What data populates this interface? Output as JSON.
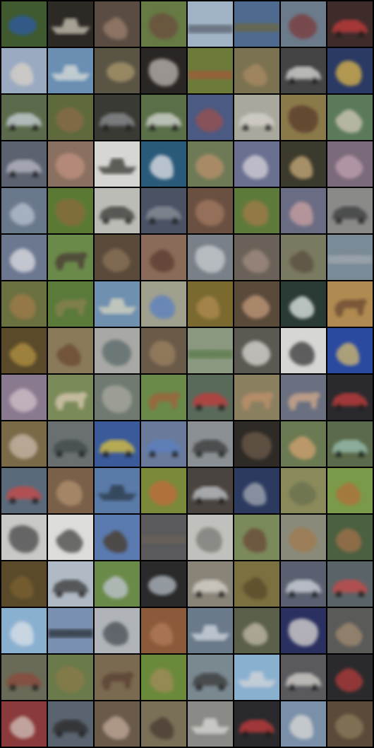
{
  "grid": {
    "rows": 16,
    "cols": 8,
    "tiles": [
      {
        "bg": "#3e5a2e",
        "fg": "#2f5aa0",
        "shape": "ellipse"
      },
      {
        "bg": "#2d2a26",
        "fg": "#c9c3b3",
        "shape": "boat"
      },
      {
        "bg": "#5a4c42",
        "fg": "#9a7e6c",
        "shape": "blob"
      },
      {
        "bg": "#667a44",
        "fg": "#6b4d3c",
        "shape": "blob"
      },
      {
        "bg": "#9fb3c5",
        "fg": "#5c6470",
        "shape": "band"
      },
      {
        "bg": "#4e6a8e",
        "fg": "#6b6640",
        "shape": "band"
      },
      {
        "bg": "#6c7b8b",
        "fg": "#7a3a3a",
        "shape": "blob"
      },
      {
        "bg": "#3d2c2a",
        "fg": "#c23a3a",
        "shape": "car"
      },
      {
        "bg": "#9aaac0",
        "fg": "#d8d0c8",
        "shape": "blob"
      },
      {
        "bg": "#6a8fb2",
        "fg": "#d8dcd8",
        "shape": "boat"
      },
      {
        "bg": "#5a5444",
        "fg": "#a8966a",
        "shape": "ellipse"
      },
      {
        "bg": "#2a2624",
        "fg": "#b9b4ae",
        "shape": "blob"
      },
      {
        "bg": "#6c7a3a",
        "fg": "#a05a3a",
        "shape": "band"
      },
      {
        "bg": "#7a7250",
        "fg": "#a88a62",
        "shape": "blob"
      },
      {
        "bg": "#444444",
        "fg": "#d8d8d6",
        "shape": "car"
      },
      {
        "bg": "#2a3a64",
        "fg": "#d8b24c",
        "shape": "blob"
      },
      {
        "bg": "#5a6a4a",
        "fg": "#c8d0d8",
        "shape": "car"
      },
      {
        "bg": "#5e6a3c",
        "fg": "#8a6a4a",
        "shape": "blob"
      },
      {
        "bg": "#3a3a34",
        "fg": "#8a8e90",
        "shape": "car"
      },
      {
        "bg": "#5a6e48",
        "fg": "#d4d6d2",
        "shape": "car"
      },
      {
        "bg": "#4a5a82",
        "fg": "#9a5050",
        "shape": "blob"
      },
      {
        "bg": "#a8a89c",
        "fg": "#d6d2cc",
        "shape": "car"
      },
      {
        "bg": "#8a7a4a",
        "fg": "#5a3a2a",
        "shape": "blob"
      },
      {
        "bg": "#5a7a5a",
        "fg": "#cfc6b8",
        "shape": "blob"
      },
      {
        "bg": "#5c6270",
        "fg": "#b8b8c4",
        "shape": "car"
      },
      {
        "bg": "#8a7060",
        "fg": "#c09080",
        "shape": "blob"
      },
      {
        "bg": "#d6d6d4",
        "fg": "#3a3a36",
        "shape": "boat"
      },
      {
        "bg": "#2a5a7a",
        "fg": "#e0e0e6",
        "shape": "blob"
      },
      {
        "bg": "#6e7a56",
        "fg": "#b8906a",
        "shape": "blob"
      },
      {
        "bg": "#6a7090",
        "fg": "#d4d0d8",
        "shape": "blob"
      },
      {
        "bg": "#3c3a2c",
        "fg": "#c4a878",
        "shape": "blob"
      },
      {
        "bg": "#7a6a7a",
        "fg": "#c0a0b0",
        "shape": "blob"
      },
      {
        "bg": "#6a788c",
        "fg": "#b6c0ce",
        "shape": "blob"
      },
      {
        "bg": "#5a7a34",
        "fg": "#8a6a3a",
        "shape": "blob"
      },
      {
        "bg": "#bcbcb6",
        "fg": "#3a3a38",
        "shape": "car"
      },
      {
        "bg": "#4a5264",
        "fg": "#8a9098",
        "shape": "car"
      },
      {
        "bg": "#6a5040",
        "fg": "#a07860",
        "shape": "blob"
      },
      {
        "bg": "#5e7a3a",
        "fg": "#a07a4a",
        "shape": "blob"
      },
      {
        "bg": "#6a6c84",
        "fg": "#c8a0a0",
        "shape": "blob"
      },
      {
        "bg": "#8a8a88",
        "fg": "#3a3c3c",
        "shape": "car"
      },
      {
        "bg": "#6c7890",
        "fg": "#dcdce2",
        "shape": "blob"
      },
      {
        "bg": "#6a8a4a",
        "fg": "#4a3a34",
        "shape": "animal"
      },
      {
        "bg": "#5a4a3a",
        "fg": "#8a7258",
        "shape": "blob"
      },
      {
        "bg": "#8a6a58",
        "fg": "#5a3c30",
        "shape": "blob"
      },
      {
        "bg": "#7a8088",
        "fg": "#c8ccd0",
        "shape": "blob"
      },
      {
        "bg": "#6a6258",
        "fg": "#a08a80",
        "shape": "blob"
      },
      {
        "bg": "#7a7a60",
        "fg": "#5a5040",
        "shape": "blob"
      },
      {
        "bg": "#7a8a96",
        "fg": "#a0a8b0",
        "shape": "band"
      },
      {
        "bg": "#6a7040",
        "fg": "#a07a4a",
        "shape": "blob"
      },
      {
        "bg": "#5a7a3a",
        "fg": "#8a8050",
        "shape": "animal"
      },
      {
        "bg": "#7090b0",
        "fg": "#d6d4c0",
        "shape": "boat"
      },
      {
        "bg": "#a0a08e",
        "fg": "#5a80c0",
        "shape": "blob"
      },
      {
        "bg": "#7a6a30",
        "fg": "#b08a50",
        "shape": "blob"
      },
      {
        "bg": "#5a4a3a",
        "fg": "#c09878",
        "shape": "blob"
      },
      {
        "bg": "#2a3a34",
        "fg": "#e0e8e4",
        "shape": "blob"
      },
      {
        "bg": "#b08a50",
        "fg": "#6a4a30",
        "shape": "animal"
      },
      {
        "bg": "#5a4a2a",
        "fg": "#b09040",
        "shape": "blob"
      },
      {
        "bg": "#8a7a5a",
        "fg": "#6a4a30",
        "shape": "blob"
      },
      {
        "bg": "#a8a8a4",
        "fg": "#5a6a6a",
        "shape": "blob"
      },
      {
        "bg": "#6a5a48",
        "fg": "#9a8060",
        "shape": "blob"
      },
      {
        "bg": "#8a9880",
        "fg": "#5a7a4a",
        "shape": "band"
      },
      {
        "bg": "#5a5a52",
        "fg": "#d8d6d2",
        "shape": "blob"
      },
      {
        "bg": "#d6d6d4",
        "fg": "#3a3a3a",
        "shape": "blob"
      },
      {
        "bg": "#2a4aa0",
        "fg": "#d0b870",
        "shape": "blob"
      },
      {
        "bg": "#8a7a90",
        "fg": "#d0c0c8",
        "shape": "blob"
      },
      {
        "bg": "#7a8a58",
        "fg": "#d8c8b0",
        "shape": "animal"
      },
      {
        "bg": "#707a70",
        "fg": "#a8a8a0",
        "shape": "blob"
      },
      {
        "bg": "#6a8a4a",
        "fg": "#a0603a",
        "shape": "animal"
      },
      {
        "bg": "#5a6a5a",
        "fg": "#c23a3a",
        "shape": "car"
      },
      {
        "bg": "#8a8060",
        "fg": "#c0906a",
        "shape": "animal"
      },
      {
        "bg": "#6a7080",
        "fg": "#d0a88a",
        "shape": "animal"
      },
      {
        "bg": "#2a2a2e",
        "fg": "#c23a3a",
        "shape": "car"
      },
      {
        "bg": "#7a6a48",
        "fg": "#c8b8a8",
        "shape": "blob"
      },
      {
        "bg": "#6a7070",
        "fg": "#404a4a",
        "shape": "car"
      },
      {
        "bg": "#3a5a9a",
        "fg": "#d8c040",
        "shape": "car"
      },
      {
        "bg": "#6a7a9a",
        "fg": "#5a80c0",
        "shape": "car"
      },
      {
        "bg": "#8a9094",
        "fg": "#3a3a3a",
        "shape": "car"
      },
      {
        "bg": "#2e2a26",
        "fg": "#6a5a4a",
        "shape": "blob"
      },
      {
        "bg": "#6a7a52",
        "fg": "#d0a070",
        "shape": "blob"
      },
      {
        "bg": "#5a6a4a",
        "fg": "#9ac0b0",
        "shape": "car"
      },
      {
        "bg": "#5a6a7a",
        "fg": "#c84a4a",
        "shape": "car"
      },
      {
        "bg": "#7a6048",
        "fg": "#b09070",
        "shape": "blob"
      },
      {
        "bg": "#5a7aa8",
        "fg": "#2a3a4a",
        "shape": "boat"
      },
      {
        "bg": "#7a8a3a",
        "fg": "#c06a3a",
        "shape": "blob"
      },
      {
        "bg": "#4a4440",
        "fg": "#c0c4c8",
        "shape": "car"
      },
      {
        "bg": "#2c3a60",
        "fg": "#a0a8b0",
        "shape": "blob"
      },
      {
        "bg": "#8a8a5a",
        "fg": "#6a7050",
        "shape": "blob"
      },
      {
        "bg": "#7a9a4a",
        "fg": "#b0703a",
        "shape": "blob"
      },
      {
        "bg": "#c8c8c6",
        "fg": "#4a4a48",
        "shape": "blob"
      },
      {
        "bg": "#dcdcda",
        "fg": "#4a4a46",
        "shape": "blob"
      },
      {
        "bg": "#5a7ab0",
        "fg": "#4a3a2a",
        "shape": "blob"
      },
      {
        "bg": "#5a5a5c",
        "fg": "#6a6058",
        "shape": "band"
      },
      {
        "bg": "#c0c0bc",
        "fg": "#7a7a76",
        "shape": "blob"
      },
      {
        "bg": "#7a8a5a",
        "fg": "#6a4a38",
        "shape": "blob"
      },
      {
        "bg": "#8a8a7a",
        "fg": "#a07a50",
        "shape": "blob"
      },
      {
        "bg": "#4a6040",
        "fg": "#a0704a",
        "shape": "blob"
      },
      {
        "bg": "#5a4a2a",
        "fg": "#7a6030",
        "shape": "blob"
      },
      {
        "bg": "#b0bac4",
        "fg": "#3a3a3a",
        "shape": "car"
      },
      {
        "bg": "#6a8a4a",
        "fg": "#c0c4d0",
        "shape": "blob"
      },
      {
        "bg": "#2a2a2a",
        "fg": "#b0b8c0",
        "shape": "ellipse"
      },
      {
        "bg": "#8a8478",
        "fg": "#d8d4cc",
        "shape": "car"
      },
      {
        "bg": "#7a7040",
        "fg": "#5a4a2a",
        "shape": "blob"
      },
      {
        "bg": "#5a6070",
        "fg": "#d0d4dc",
        "shape": "car"
      },
      {
        "bg": "#5a6468",
        "fg": "#c84a4a",
        "shape": "car"
      },
      {
        "bg": "#8ab0d0",
        "fg": "#d8e0e6",
        "shape": "blob"
      },
      {
        "bg": "#7a90b0",
        "fg": "#2a3038",
        "shape": "band"
      },
      {
        "bg": "#b0b4b8",
        "fg": "#4a5054",
        "shape": "blob"
      },
      {
        "bg": "#8a5a3a",
        "fg": "#b07a5a",
        "shape": "blob"
      },
      {
        "bg": "#6a7a8a",
        "fg": "#d0d8e0",
        "shape": "boat"
      },
      {
        "bg": "#5a604a",
        "fg": "#c0b8a8",
        "shape": "blob"
      },
      {
        "bg": "#2a3060",
        "fg": "#d8d4d0",
        "shape": "blob"
      },
      {
        "bg": "#5a5a58",
        "fg": "#a08a70",
        "shape": "blob"
      },
      {
        "bg": "#6a6a58",
        "fg": "#8a4a3a",
        "shape": "car"
      },
      {
        "bg": "#6a7a4a",
        "fg": "#8a7a4a",
        "shape": "blob"
      },
      {
        "bg": "#7a6a50",
        "fg": "#5a4030",
        "shape": "animal"
      },
      {
        "bg": "#6a8a3a",
        "fg": "#a08a5a",
        "shape": "blob"
      },
      {
        "bg": "#7a8890",
        "fg": "#3a3a3a",
        "shape": "car"
      },
      {
        "bg": "#8ab0d0",
        "fg": "#d0d4d8",
        "shape": "boat"
      },
      {
        "bg": "#5a5a5e",
        "fg": "#d4d0cc",
        "shape": "car"
      },
      {
        "bg": "#2a2a2c",
        "fg": "#b03a3a",
        "shape": "blob"
      },
      {
        "bg": "#8a3a3a",
        "fg": "#d0c0b8",
        "shape": "blob"
      },
      {
        "bg": "#5a6470",
        "fg": "#2a2a2c",
        "shape": "car"
      },
      {
        "bg": "#6a5a4a",
        "fg": "#c0a898",
        "shape": "blob"
      },
      {
        "bg": "#7a7058",
        "fg": "#4a3a30",
        "shape": "blob"
      },
      {
        "bg": "#8a8a86",
        "fg": "#d8d8d4",
        "shape": "boat"
      },
      {
        "bg": "#2a2a2e",
        "fg": "#c23a3a",
        "shape": "car"
      },
      {
        "bg": "#7a90a8",
        "fg": "#d8d8d6",
        "shape": "blob"
      },
      {
        "bg": "#5a4a3a",
        "fg": "#8a7a5a",
        "shape": "blob"
      }
    ]
  }
}
